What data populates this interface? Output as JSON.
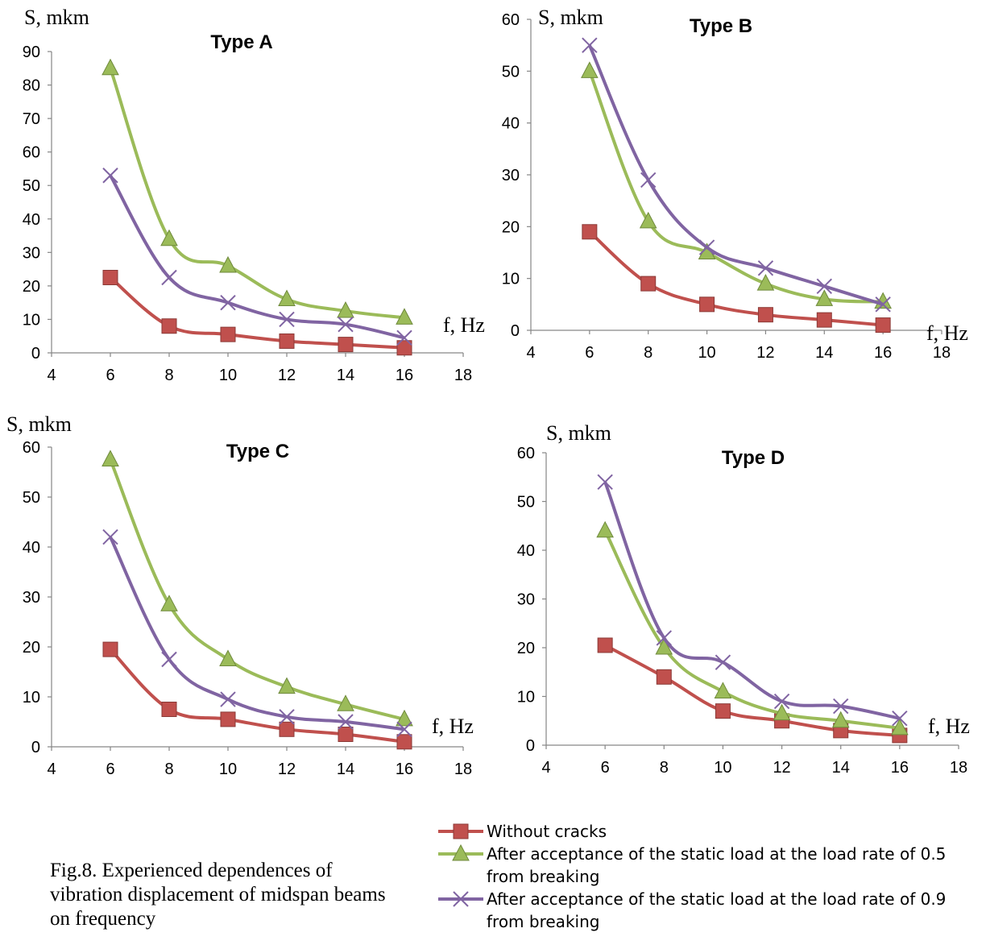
{
  "chart_data": [
    {
      "type": "line",
      "title": "Type A",
      "ylabel": "S, mkm",
      "xlabel": "f, Hz",
      "xlim": [
        4,
        18
      ],
      "ylim": [
        0,
        90
      ],
      "xticks": [
        "4",
        "6",
        "8",
        "10",
        "12",
        "14",
        "16",
        "18"
      ],
      "yticks": [
        "0",
        "10",
        "20",
        "30",
        "40",
        "50",
        "60",
        "70",
        "80",
        "90"
      ],
      "x": [
        6,
        8,
        10,
        12,
        14,
        16
      ],
      "series": [
        {
          "name": "Without cracks",
          "values": [
            22.5,
            8,
            5.5,
            3.5,
            2.5,
            1.5
          ]
        },
        {
          "name": "After acceptance of the static load at the load rate of 0.5 from breaking",
          "values": [
            85,
            34,
            26,
            16,
            12.5,
            10.5
          ]
        },
        {
          "name": "After acceptance of the static load at the load rate of 0.9 from breaking",
          "values": [
            53,
            22.5,
            15,
            10,
            8.5,
            4.5
          ]
        }
      ]
    },
    {
      "type": "line",
      "title": "Type B",
      "ylabel": "S, mkm",
      "xlabel": "f, Hz",
      "xlim": [
        4,
        18
      ],
      "ylim": [
        0,
        60
      ],
      "xticks": [
        "4",
        "6",
        "8",
        "10",
        "12",
        "14",
        "16",
        "18"
      ],
      "yticks": [
        "0",
        "10",
        "20",
        "30",
        "40",
        "50",
        "60"
      ],
      "x": [
        6,
        8,
        10,
        12,
        14,
        16
      ],
      "series": [
        {
          "name": "Without cracks",
          "values": [
            19,
            9,
            5,
            3,
            2,
            1
          ]
        },
        {
          "name": "After acceptance of the static load at the load rate of 0.5 from breaking",
          "values": [
            50,
            21,
            15,
            9,
            6,
            5.5
          ]
        },
        {
          "name": "After acceptance of the static load at the load rate of 0.9 from breaking",
          "values": [
            55,
            29,
            16,
            12,
            8.5,
            5
          ]
        }
      ]
    },
    {
      "type": "line",
      "title": "Type C",
      "ylabel": "S, mkm",
      "xlabel": "f, Hz",
      "xlim": [
        4,
        18
      ],
      "ylim": [
        0,
        60
      ],
      "xticks": [
        "4",
        "6",
        "8",
        "10",
        "12",
        "14",
        "16",
        "18"
      ],
      "yticks": [
        "0",
        "10",
        "20",
        "30",
        "40",
        "50",
        "60"
      ],
      "x": [
        6,
        8,
        10,
        12,
        14,
        16
      ],
      "series": [
        {
          "name": "Without cracks",
          "values": [
            19.5,
            7.5,
            5.5,
            3.5,
            2.5,
            1
          ]
        },
        {
          "name": "After acceptance of the static load at the load rate of 0.5 from breaking",
          "values": [
            57.5,
            28.5,
            17.5,
            12,
            8.5,
            5.5
          ]
        },
        {
          "name": "After acceptance of the static load at the load rate of 0.9 from breaking",
          "values": [
            42,
            17.5,
            9.5,
            6,
            5,
            3.5
          ]
        }
      ]
    },
    {
      "type": "line",
      "title": "Type D",
      "ylabel": "S, mkm",
      "xlabel": "f, Hz",
      "xlim": [
        4,
        18
      ],
      "ylim": [
        0,
        60
      ],
      "xticks": [
        "4",
        "6",
        "8",
        "10",
        "12",
        "14",
        "16",
        "18"
      ],
      "yticks": [
        "0",
        "10",
        "20",
        "30",
        "40",
        "50",
        "60"
      ],
      "x": [
        6,
        8,
        10,
        12,
        14,
        16
      ],
      "series": [
        {
          "name": "Without cracks",
          "values": [
            20.5,
            14,
            7,
            5,
            3,
            2
          ]
        },
        {
          "name": "After acceptance of the static load at the load rate of 0.5 from breaking",
          "values": [
            44,
            20,
            11,
            6.5,
            5,
            3.5
          ]
        },
        {
          "name": "After acceptance of the static load at the load rate of 0.9 from breaking",
          "values": [
            54,
            22,
            17,
            9,
            8,
            5.5
          ]
        }
      ]
    }
  ],
  "colors": {
    "without_cracks": "#C0504D",
    "load_0_5": "#9BBB59",
    "load_0_9": "#8064A2"
  },
  "legend": [
    {
      "label": "Without cracks",
      "marker": "square",
      "color_key": "without_cracks"
    },
    {
      "label": "After acceptance of the static load at the load rate of 0.5 from breaking",
      "marker": "triangle",
      "color_key": "load_0_5"
    },
    {
      "label": "After acceptance of the static load at the load rate of 0.9 from breaking",
      "marker": "cross",
      "color_key": "load_0_9"
    }
  ],
  "caption": "Fig.8. Experienced dependences of vibration displacement of midspan beams on frequency"
}
